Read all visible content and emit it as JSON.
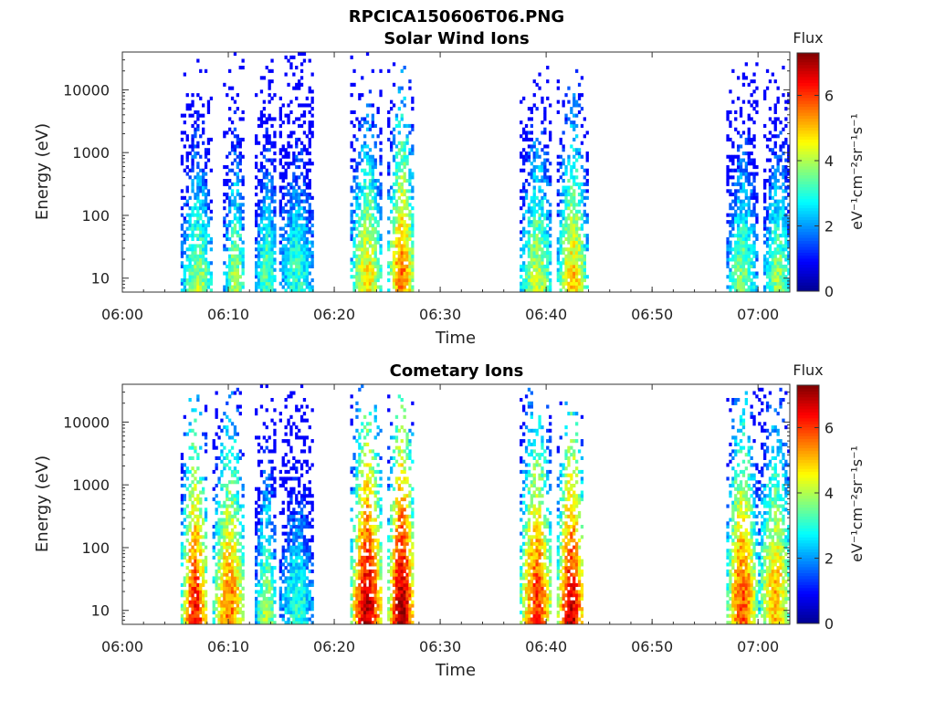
{
  "figure_title": "RPCICA150606T06.PNG",
  "colors": {
    "colormap": [
      "#00008f",
      "#0000ff",
      "#0080ff",
      "#00ffff",
      "#80ff80",
      "#ffff00",
      "#ff8000",
      "#ff0000",
      "#800000"
    ]
  },
  "chart_data": [
    {
      "type": "heatmap",
      "title": "Solar Wind Ions",
      "xlabel": "Time",
      "ylabel": "Energy (eV)",
      "yscale": "log",
      "ylim": [
        6,
        40000
      ],
      "xlim": [
        "06:00",
        "07:03"
      ],
      "xticks": [
        "06:00",
        "06:10",
        "06:20",
        "06:30",
        "06:40",
        "06:50",
        "07:00"
      ],
      "yticks": [
        "10",
        "100",
        "1000",
        "10000"
      ],
      "colorbar": {
        "title": "Flux",
        "label": "eV⁻¹cm⁻²sr⁻¹s⁻¹",
        "range": [
          0,
          7.3
        ],
        "ticks": [
          "0",
          "2",
          "4",
          "6"
        ]
      },
      "bursts": [
        {
          "start": "06:05.5",
          "end": "06:08.5",
          "peak_energy_eV": 8,
          "max_flux": 4.0
        },
        {
          "start": "06:09.5",
          "end": "06:11.5",
          "peak_energy_eV": 10,
          "max_flux": 4.0
        },
        {
          "start": "06:12.5",
          "end": "06:14.5",
          "peak_energy_eV": 20,
          "max_flux": 3.3
        },
        {
          "start": "06:14.8",
          "end": "06:18.0",
          "peak_energy_eV": 25,
          "max_flux": 3.0
        },
        {
          "start": "06:21.5",
          "end": "06:24.5",
          "peak_energy_eV": 12,
          "max_flux": 4.7
        },
        {
          "start": "06:25.0",
          "end": "06:27.5",
          "peak_energy_eV": 15,
          "max_flux": 5.5
        },
        {
          "start": "06:37.5",
          "end": "06:40.5",
          "peak_energy_eV": 12,
          "max_flux": 4.2
        },
        {
          "start": "06:41.0",
          "end": "06:43.8",
          "peak_energy_eV": 10,
          "max_flux": 5.0
        },
        {
          "start": "06:57.0",
          "end": "06:59.8",
          "peak_energy_eV": 15,
          "max_flux": 3.6
        },
        {
          "start": "07:00.5",
          "end": "07:03.0",
          "peak_energy_eV": 12,
          "max_flux": 3.8
        }
      ]
    },
    {
      "type": "heatmap",
      "title": "Cometary Ions",
      "xlabel": "Time",
      "ylabel": "Energy (eV)",
      "yscale": "log",
      "ylim": [
        6,
        40000
      ],
      "xlim": [
        "06:00",
        "07:03"
      ],
      "xticks": [
        "06:00",
        "06:10",
        "06:20",
        "06:30",
        "06:40",
        "06:50",
        "07:00"
      ],
      "yticks": [
        "10",
        "100",
        "1000",
        "10000"
      ],
      "colorbar": {
        "title": "Flux",
        "label": "eV⁻¹cm⁻²sr⁻¹s⁻¹",
        "range": [
          0,
          7.3
        ],
        "ticks": [
          "0",
          "2",
          "4",
          "6"
        ]
      },
      "bursts": [
        {
          "start": "06:05.5",
          "end": "06:08.0",
          "peak_energy_eV": 12,
          "max_flux": 6.3
        },
        {
          "start": "06:08.5",
          "end": "06:11.5",
          "peak_energy_eV": 20,
          "max_flux": 5.5
        },
        {
          "start": "06:12.5",
          "end": "06:14.5",
          "peak_energy_eV": 12,
          "max_flux": 4.0
        },
        {
          "start": "06:14.8",
          "end": "06:18.0",
          "peak_energy_eV": 20,
          "max_flux": 3.0
        },
        {
          "start": "06:21.5",
          "end": "06:24.5",
          "peak_energy_eV": 15,
          "max_flux": 6.8
        },
        {
          "start": "06:25.0",
          "end": "06:27.5",
          "peak_energy_eV": 15,
          "max_flux": 7.0
        },
        {
          "start": "06:37.5",
          "end": "06:40.5",
          "peak_energy_eV": 20,
          "max_flux": 6.0
        },
        {
          "start": "06:41.0",
          "end": "06:43.5",
          "peak_energy_eV": 12,
          "max_flux": 6.8
        },
        {
          "start": "06:57.0",
          "end": "06:59.8",
          "peak_energy_eV": 25,
          "max_flux": 5.8
        },
        {
          "start": "07:00.0",
          "end": "07:03.0",
          "peak_energy_eV": 30,
          "max_flux": 5.0
        }
      ]
    }
  ]
}
